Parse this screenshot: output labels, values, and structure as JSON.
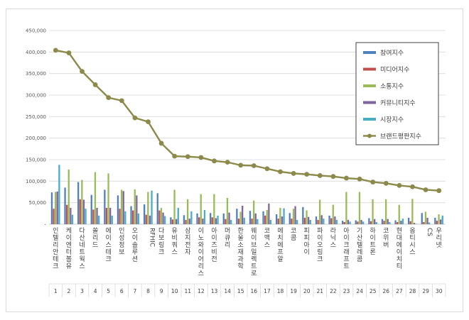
{
  "chart_data": {
    "type": "bar",
    "ylim": [
      0,
      450000
    ],
    "yticks": [
      "-",
      "50,000",
      "100,000",
      "150,000",
      "200,000",
      "250,000",
      "300,000",
      "350,000",
      "400,000",
      "450,000"
    ],
    "grid": true,
    "legend_position": "top-right",
    "categories": [
      "인텔리안테크",
      "케이엔터볼유",
      "다산네트웍스",
      "쏠리드",
      "에이스테크",
      "인성정보",
      "오이솔루션",
      "RFHIC",
      "다보링크",
      "유비쿼스",
      "삼지전자",
      "이노와이어리스",
      "아이즈비전",
      "머큐리",
      "한울소재과학",
      "웨이브일렉트로",
      "코맥스",
      "에치에프알",
      "코콤",
      "피피아이",
      "파이오링크",
      "라닉스",
      "아이크래프트",
      "기산텔레콤",
      "하이트론",
      "코위버",
      "현대에이치티",
      "옵티시스",
      "CS",
      "우리넷"
    ],
    "indices": [
      "1",
      "2",
      "3",
      "4",
      "5",
      "6",
      "7",
      "8",
      "9",
      "10",
      "11",
      "12",
      "13",
      "14",
      "15",
      "16",
      "17",
      "18",
      "19",
      "20",
      "21",
      "22",
      "23",
      "24",
      "25",
      "26",
      "27",
      "28",
      "29",
      "30"
    ],
    "series": [
      {
        "name": "참여지수",
        "color": "#4f81bd",
        "kind": "bar",
        "values": [
          74000,
          85000,
          98000,
          68000,
          80000,
          67000,
          42000,
          46000,
          72000,
          16000,
          21000,
          25000,
          26000,
          25000,
          36000,
          31000,
          30000,
          23000,
          26000,
          40000,
          18000,
          20000,
          8000,
          9000,
          14000,
          12000,
          9000,
          15000,
          26000,
          15000
        ]
      },
      {
        "name": "미디어지수",
        "color": "#c0504d",
        "kind": "bar",
        "values": [
          36000,
          45000,
          58000,
          34000,
          38000,
          36000,
          32000,
          22000,
          32000,
          11000,
          10000,
          16000,
          16000,
          12000,
          13000,
          13000,
          20000,
          13000,
          13000,
          15000,
          10000,
          14000,
          5000,
          6000,
          7000,
          8000,
          5000,
          7000,
          5000,
          8000
        ]
      },
      {
        "name": "소통지수",
        "color": "#9bbb59",
        "kind": "bar",
        "values": [
          75000,
          127000,
          103000,
          121000,
          118000,
          80000,
          81000,
          75000,
          38000,
          80000,
          58000,
          70000,
          70000,
          61000,
          29000,
          55000,
          33000,
          38000,
          36000,
          32000,
          57000,
          45000,
          75000,
          75000,
          58000,
          58000,
          45000,
          59000,
          29000,
          23000
        ]
      },
      {
        "name": "커뮤니티지수",
        "color": "#8064a2",
        "kind": "bar",
        "values": [
          76000,
          38000,
          57000,
          38000,
          38000,
          77000,
          67000,
          20000,
          27000,
          12000,
          13000,
          13000,
          14000,
          27000,
          43000,
          25000,
          48000,
          18000,
          42000,
          17000,
          21000,
          18000,
          10000,
          10000,
          12000,
          12000,
          8000,
          3000,
          15000,
          11000
        ]
      },
      {
        "name": "시장지수",
        "color": "#4bacc6",
        "kind": "bar",
        "values": [
          138000,
          22000,
          36000,
          20000,
          20000,
          30000,
          25000,
          78000,
          19000,
          38000,
          30000,
          33000,
          20000,
          10000,
          15000,
          12000,
          10000,
          37000,
          10000,
          10000,
          13000,
          10000,
          6000,
          6000,
          5000,
          5000,
          13000,
          1000,
          4000,
          20000
        ]
      },
      {
        "name": "브랜드평판지수",
        "color": "#8b8a4a",
        "kind": "line",
        "values": [
          404000,
          398000,
          355000,
          324000,
          294000,
          287000,
          247000,
          238000,
          188000,
          158000,
          157000,
          155000,
          147000,
          144000,
          137000,
          136000,
          129000,
          122000,
          118000,
          116000,
          113000,
          111000,
          107000,
          105000,
          98000,
          95000,
          90000,
          87000,
          80000,
          78000
        ]
      }
    ]
  }
}
